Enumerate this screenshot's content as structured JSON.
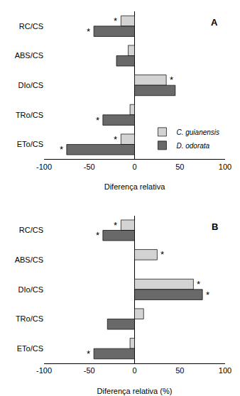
{
  "chart_data": [
    {
      "type": "bar",
      "orientation": "horizontal",
      "title": "A",
      "categories": [
        "RC/CS",
        "ABS/CS",
        "DIo/CS",
        "TRo/CS",
        "ETo/CS"
      ],
      "series": [
        {
          "name": "C. guianensis",
          "color": "#d3d3d3",
          "values": [
            -15,
            -7,
            35,
            -5,
            -15
          ],
          "annotations": [
            "*",
            null,
            "*",
            null,
            "*"
          ]
        },
        {
          "name": "D. odorata",
          "color": "#696969",
          "values": [
            -45,
            -20,
            45,
            -35,
            -75
          ],
          "annotations": [
            "*",
            null,
            null,
            "*",
            "*"
          ]
        }
      ],
      "xlabel": "Diferença relativa",
      "xlim": [
        -100,
        100
      ],
      "xticks": [
        -100,
        -50,
        0,
        50,
        100
      ],
      "grid": false,
      "legend": "lower right"
    },
    {
      "type": "bar",
      "orientation": "horizontal",
      "title": "B",
      "categories": [
        "RC/CS",
        "ABS/CS",
        "DIo/CS",
        "TRo/CS",
        "ETo/CS"
      ],
      "series": [
        {
          "name": "C. guianensis",
          "color": "#d3d3d3",
          "values": [
            -15,
            25,
            65,
            10,
            -5
          ],
          "annotations": [
            "*",
            "*",
            "*",
            null,
            null
          ]
        },
        {
          "name": "D. odorata",
          "color": "#696969",
          "values": [
            -35,
            0,
            75,
            -30,
            -45
          ],
          "annotations": [
            "*",
            null,
            "*",
            null,
            "*"
          ]
        }
      ],
      "xlabel": "Diferença relativa (%)",
      "xlim": [
        -100,
        100
      ],
      "xticks": [
        -100,
        -50,
        0,
        50,
        100
      ],
      "grid": false,
      "legend": false
    }
  ]
}
